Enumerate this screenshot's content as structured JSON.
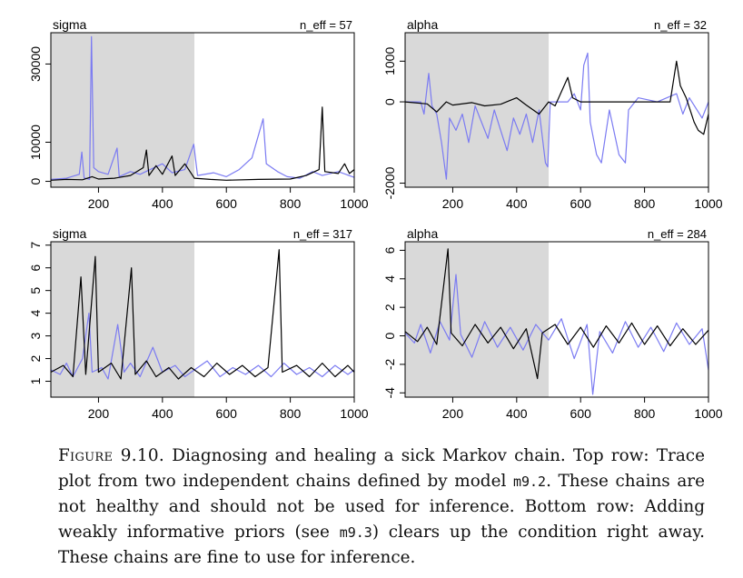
{
  "caption": {
    "label": "Figure 9.10.",
    "s1": " Diagnosing and healing a sick Markov chain. Top row: Trace plot from two independent chains defined by model ",
    "code1": "m9.2",
    "s2": ". These chains are not healthy and should not be used for inference. Bottom row: Adding weakly informative priors (see ",
    "code2": "m9.3",
    "s3": ") clears up the condition right away. These chains are fine to use for inference."
  },
  "colors": {
    "warmup": "#d9d9d9",
    "chain1": "#7b7bf2",
    "chain2": "#000000",
    "frame": "#000000"
  },
  "chart_data": [
    {
      "type": "line",
      "title": "sigma",
      "annotation": "n_eff = 57",
      "xlim": [
        51,
        1000
      ],
      "ylim": [
        -1500,
        38000
      ],
      "xticks": [
        200,
        400,
        600,
        800,
        1000
      ],
      "yticks": [
        0,
        10000,
        30000
      ],
      "warmup_shading": [
        51,
        500
      ],
      "series": [
        {
          "color": "#7b7bf2",
          "points": [
            [
              51,
              500
            ],
            [
              100,
              800
            ],
            [
              140,
              1800
            ],
            [
              148,
              7500
            ],
            [
              155,
              900
            ],
            [
              172,
              500
            ],
            [
              178,
              37000
            ],
            [
              185,
              3500
            ],
            [
              200,
              2500
            ],
            [
              230,
              1800
            ],
            [
              258,
              8500
            ],
            [
              265,
              1200
            ],
            [
              300,
              2500
            ],
            [
              330,
              1800
            ],
            [
              400,
              4500
            ],
            [
              430,
              2200
            ],
            [
              470,
              3000
            ],
            [
              498,
              9500
            ],
            [
              510,
              1500
            ],
            [
              560,
              2200
            ],
            [
              600,
              1200
            ],
            [
              640,
              3000
            ],
            [
              680,
              6000
            ],
            [
              715,
              16000
            ],
            [
              725,
              4500
            ],
            [
              760,
              2500
            ],
            [
              790,
              1200
            ],
            [
              830,
              800
            ],
            [
              870,
              2500
            ],
            [
              900,
              1500
            ],
            [
              950,
              2500
            ],
            [
              1000,
              1000
            ]
          ]
        },
        {
          "color": "#000000",
          "points": [
            [
              51,
              300
            ],
            [
              100,
              500
            ],
            [
              150,
              400
            ],
            [
              180,
              1200
            ],
            [
              200,
              600
            ],
            [
              250,
              800
            ],
            [
              300,
              1500
            ],
            [
              340,
              3500
            ],
            [
              350,
              8000
            ],
            [
              358,
              1500
            ],
            [
              380,
              4000
            ],
            [
              400,
              1800
            ],
            [
              430,
              6500
            ],
            [
              440,
              1500
            ],
            [
              470,
              4500
            ],
            [
              500,
              800
            ],
            [
              550,
              500
            ],
            [
              600,
              300
            ],
            [
              700,
              500
            ],
            [
              800,
              600
            ],
            [
              850,
              1500
            ],
            [
              890,
              3000
            ],
            [
              900,
              19000
            ],
            [
              908,
              2500
            ],
            [
              950,
              2000
            ],
            [
              970,
              4500
            ],
            [
              985,
              2000
            ],
            [
              1000,
              3000
            ]
          ]
        }
      ]
    },
    {
      "type": "line",
      "title": "alpha",
      "annotation": "n_eff = 32",
      "xlim": [
        51,
        1000
      ],
      "ylim": [
        -2100,
        1700
      ],
      "xticks": [
        200,
        400,
        600,
        800,
        1000
      ],
      "yticks": [
        -2000,
        0,
        1000
      ],
      "warmup_shading": [
        51,
        500
      ],
      "series": [
        {
          "color": "#7b7bf2",
          "points": [
            [
              51,
              0
            ],
            [
              100,
              0
            ],
            [
              110,
              -300
            ],
            [
              125,
              700
            ],
            [
              135,
              -100
            ],
            [
              150,
              -300
            ],
            [
              165,
              -1000
            ],
            [
              180,
              -1900
            ],
            [
              190,
              -400
            ],
            [
              210,
              -700
            ],
            [
              230,
              -300
            ],
            [
              250,
              -1000
            ],
            [
              270,
              -100
            ],
            [
              290,
              -500
            ],
            [
              310,
              -900
            ],
            [
              330,
              -200
            ],
            [
              350,
              -700
            ],
            [
              370,
              -1200
            ],
            [
              390,
              -400
            ],
            [
              410,
              -800
            ],
            [
              430,
              -300
            ],
            [
              450,
              -1000
            ],
            [
              470,
              -200
            ],
            [
              490,
              -1500
            ],
            [
              497,
              -1600
            ],
            [
              505,
              0
            ],
            [
              560,
              0
            ],
            [
              580,
              200
            ],
            [
              600,
              -200
            ],
            [
              610,
              900
            ],
            [
              622,
              1200
            ],
            [
              630,
              -500
            ],
            [
              650,
              -1300
            ],
            [
              665,
              -1500
            ],
            [
              690,
              -200
            ],
            [
              720,
              -1300
            ],
            [
              740,
              -1500
            ],
            [
              750,
              -200
            ],
            [
              780,
              100
            ],
            [
              840,
              0
            ],
            [
              900,
              200
            ],
            [
              920,
              -300
            ],
            [
              940,
              100
            ],
            [
              980,
              -400
            ],
            [
              1000,
              0
            ]
          ]
        },
        {
          "color": "#000000",
          "points": [
            [
              51,
              0
            ],
            [
              120,
              -50
            ],
            [
              150,
              -250
            ],
            [
              180,
              0
            ],
            [
              200,
              -80
            ],
            [
              260,
              -20
            ],
            [
              300,
              -100
            ],
            [
              350,
              -60
            ],
            [
              400,
              100
            ],
            [
              430,
              -80
            ],
            [
              470,
              -300
            ],
            [
              500,
              0
            ],
            [
              520,
              -100
            ],
            [
              560,
              600
            ],
            [
              575,
              100
            ],
            [
              600,
              0
            ],
            [
              700,
              0
            ],
            [
              880,
              0
            ],
            [
              900,
              1000
            ],
            [
              912,
              400
            ],
            [
              930,
              100
            ],
            [
              955,
              -500
            ],
            [
              968,
              -700
            ],
            [
              985,
              -800
            ],
            [
              1000,
              -300
            ]
          ]
        }
      ]
    },
    {
      "type": "line",
      "title": "sigma",
      "annotation": "n_eff = 317",
      "xlim": [
        51,
        1000
      ],
      "ylim": [
        0.3,
        7.15
      ],
      "xticks": [
        200,
        400,
        600,
        800,
        1000
      ],
      "yticks": [
        1,
        2,
        3,
        4,
        5,
        6,
        7
      ],
      "warmup_shading": [
        51,
        500
      ],
      "series": [
        {
          "color": "#7b7bf2",
          "points": [
            [
              51,
              1.5
            ],
            [
              80,
              1.3
            ],
            [
              100,
              1.8
            ],
            [
              120,
              1.2
            ],
            [
              150,
              2.0
            ],
            [
              170,
              4.0
            ],
            [
              180,
              1.4
            ],
            [
              210,
              1.6
            ],
            [
              230,
              1.1
            ],
            [
              260,
              3.5
            ],
            [
              280,
              1.4
            ],
            [
              300,
              1.8
            ],
            [
              330,
              1.2
            ],
            [
              370,
              2.5
            ],
            [
              400,
              1.4
            ],
            [
              440,
              1.7
            ],
            [
              470,
              1.2
            ],
            [
              500,
              1.5
            ],
            [
              540,
              1.9
            ],
            [
              580,
              1.2
            ],
            [
              620,
              1.6
            ],
            [
              660,
              1.3
            ],
            [
              700,
              1.7
            ],
            [
              740,
              1.2
            ],
            [
              780,
              1.8
            ],
            [
              820,
              1.3
            ],
            [
              860,
              1.6
            ],
            [
              900,
              1.2
            ],
            [
              940,
              1.7
            ],
            [
              980,
              1.3
            ],
            [
              1000,
              1.5
            ]
          ]
        },
        {
          "color": "#000000",
          "points": [
            [
              51,
              1.4
            ],
            [
              90,
              1.7
            ],
            [
              120,
              1.2
            ],
            [
              145,
              5.6
            ],
            [
              160,
              1.3
            ],
            [
              190,
              6.5
            ],
            [
              200,
              1.4
            ],
            [
              240,
              1.8
            ],
            [
              270,
              1.1
            ],
            [
              303,
              6.0
            ],
            [
              315,
              1.3
            ],
            [
              350,
              1.9
            ],
            [
              380,
              1.2
            ],
            [
              420,
              1.6
            ],
            [
              450,
              1.1
            ],
            [
              490,
              1.6
            ],
            [
              530,
              1.2
            ],
            [
              570,
              1.8
            ],
            [
              610,
              1.3
            ],
            [
              650,
              1.7
            ],
            [
              690,
              1.2
            ],
            [
              730,
              1.6
            ],
            [
              765,
              6.8
            ],
            [
              775,
              1.4
            ],
            [
              820,
              1.7
            ],
            [
              860,
              1.2
            ],
            [
              900,
              1.8
            ],
            [
              940,
              1.2
            ],
            [
              980,
              1.7
            ],
            [
              1000,
              1.4
            ]
          ]
        }
      ]
    },
    {
      "type": "line",
      "title": "alpha",
      "annotation": "n_eff = 284",
      "xlim": [
        51,
        1000
      ],
      "ylim": [
        -4.3,
        6.6
      ],
      "xticks": [
        200,
        400,
        600,
        800,
        1000
      ],
      "yticks": [
        -4,
        -2,
        0,
        2,
        4,
        6
      ],
      "warmup_shading": [
        51,
        500
      ],
      "series": [
        {
          "color": "#7b7bf2",
          "points": [
            [
              51,
              0.2
            ],
            [
              80,
              -0.5
            ],
            [
              100,
              0.8
            ],
            [
              130,
              -1.2
            ],
            [
              160,
              1.0
            ],
            [
              190,
              -0.3
            ],
            [
              210,
              4.3
            ],
            [
              225,
              0.1
            ],
            [
              260,
              -1.5
            ],
            [
              300,
              1.0
            ],
            [
              340,
              -0.8
            ],
            [
              380,
              0.6
            ],
            [
              420,
              -1.0
            ],
            [
              460,
              0.8
            ],
            [
              500,
              -0.3
            ],
            [
              540,
              1.2
            ],
            [
              580,
              -1.6
            ],
            [
              620,
              0.8
            ],
            [
              638,
              -4.1
            ],
            [
              660,
              0.3
            ],
            [
              700,
              -1.2
            ],
            [
              740,
              1.0
            ],
            [
              780,
              -0.8
            ],
            [
              820,
              0.6
            ],
            [
              860,
              -1.1
            ],
            [
              900,
              0.9
            ],
            [
              940,
              -0.6
            ],
            [
              980,
              0.5
            ],
            [
              1000,
              -2.4
            ]
          ]
        },
        {
          "color": "#000000",
          "points": [
            [
              51,
              0.3
            ],
            [
              90,
              -0.4
            ],
            [
              120,
              0.6
            ],
            [
              150,
              -0.6
            ],
            [
              185,
              6.1
            ],
            [
              195,
              0.2
            ],
            [
              230,
              -0.7
            ],
            [
              270,
              0.8
            ],
            [
              310,
              -0.5
            ],
            [
              350,
              0.6
            ],
            [
              390,
              -0.9
            ],
            [
              430,
              0.5
            ],
            [
              465,
              -3.0
            ],
            [
              480,
              0.2
            ],
            [
              520,
              0.8
            ],
            [
              560,
              -0.6
            ],
            [
              600,
              0.6
            ],
            [
              640,
              -0.8
            ],
            [
              680,
              0.7
            ],
            [
              720,
              -0.5
            ],
            [
              760,
              0.9
            ],
            [
              800,
              -0.6
            ],
            [
              840,
              0.7
            ],
            [
              880,
              -0.7
            ],
            [
              920,
              0.5
            ],
            [
              960,
              -0.6
            ],
            [
              1000,
              0.4
            ]
          ]
        }
      ]
    }
  ]
}
